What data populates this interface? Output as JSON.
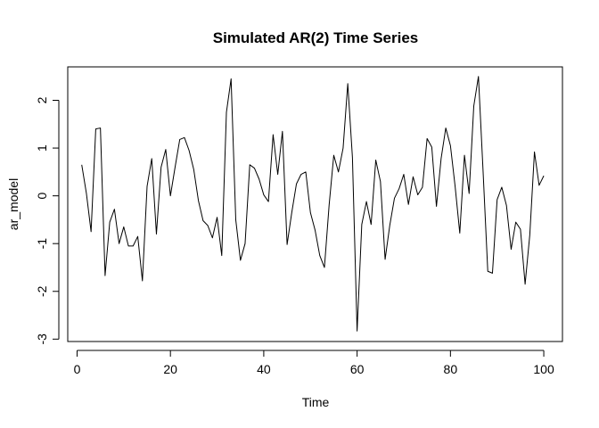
{
  "chart_data": {
    "type": "line",
    "title": "Simulated AR(2) Time Series",
    "xlabel": "Time",
    "ylabel": "ar_model",
    "xlim": [
      -2,
      104
    ],
    "ylim": [
      -3.05,
      2.7
    ],
    "x_ticks": [
      0,
      20,
      40,
      60,
      80,
      100
    ],
    "x_tick_labels": [
      "0",
      "20",
      "40",
      "60",
      "80",
      "100"
    ],
    "y_ticks": [
      -3,
      -2,
      -1,
      0,
      1,
      2
    ],
    "y_tick_labels": [
      "-3",
      "-2",
      "-1",
      "0",
      "1",
      "2"
    ],
    "grid": false,
    "legend": "none",
    "line_color": "#000000",
    "series": [
      {
        "x": [
          1,
          2,
          3,
          4,
          5,
          6,
          7,
          8,
          9,
          10,
          11,
          12,
          13,
          14,
          15,
          16,
          17,
          18,
          19,
          20,
          21,
          22,
          23,
          24,
          25,
          26,
          27,
          28,
          29,
          30,
          31,
          32,
          33,
          34,
          35,
          36,
          37,
          38,
          39,
          40,
          41,
          42,
          43,
          44,
          45,
          46,
          47,
          48,
          49,
          50,
          51,
          52,
          53,
          54,
          55,
          56,
          57,
          58,
          59,
          60,
          61,
          62,
          63,
          64,
          65,
          66,
          67,
          68,
          69,
          70,
          71,
          72,
          73,
          74,
          75,
          76,
          77,
          78,
          79,
          80,
          81,
          82,
          83,
          84,
          85,
          86,
          87,
          88,
          89,
          90,
          91,
          92,
          93,
          94,
          95,
          96,
          97,
          98,
          99,
          100
        ],
        "values": [
          0.65,
          0.05,
          -0.75,
          1.4,
          1.42,
          -1.67,
          -0.55,
          -0.28,
          -1.0,
          -0.65,
          -1.05,
          -1.05,
          -0.85,
          -1.78,
          0.2,
          0.78,
          -0.8,
          0.6,
          0.97,
          0.0,
          0.6,
          1.18,
          1.22,
          0.95,
          0.55,
          -0.1,
          -0.52,
          -0.62,
          -0.88,
          -0.45,
          -1.25,
          1.75,
          2.45,
          -0.5,
          -1.35,
          -1.0,
          0.65,
          0.58,
          0.35,
          0.02,
          -0.12,
          1.28,
          0.45,
          1.35,
          -1.02,
          -0.35,
          0.25,
          0.45,
          0.5,
          -0.35,
          -0.72,
          -1.25,
          -1.5,
          -0.2,
          0.85,
          0.5,
          1.0,
          2.35,
          0.8,
          -2.83,
          -0.6,
          -0.12,
          -0.6,
          0.75,
          0.3,
          -1.33,
          -0.62,
          -0.05,
          0.15,
          0.45,
          -0.18,
          0.4,
          0.02,
          0.18,
          1.2,
          1.02,
          -0.22,
          0.78,
          1.42,
          1.05,
          0.2,
          -0.78,
          0.85,
          0.05,
          1.88,
          2.5,
          0.5,
          -1.58,
          -1.62,
          -0.08,
          0.18,
          -0.2,
          -1.12,
          -0.55,
          -0.7,
          -1.85,
          -0.82,
          0.92,
          0.22,
          0.42
        ]
      }
    ]
  }
}
